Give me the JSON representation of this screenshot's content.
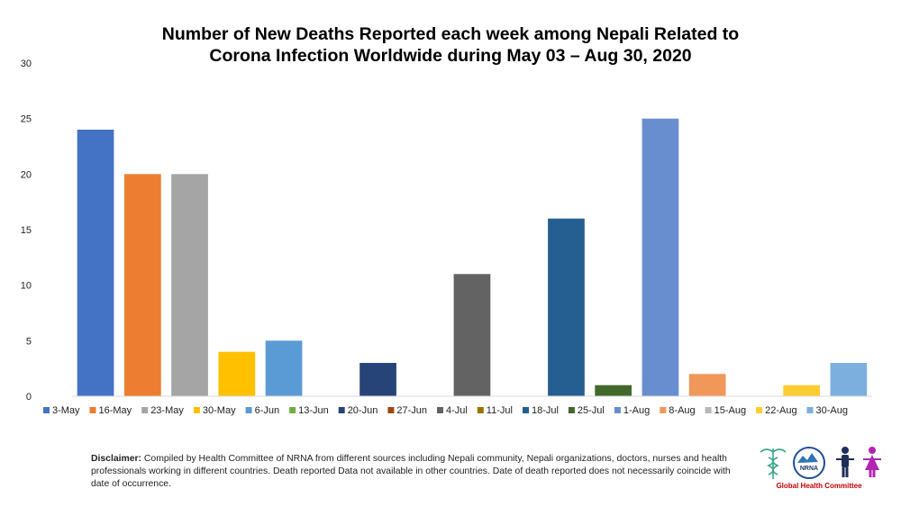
{
  "title_line1": "Number of New Deaths Reported each week among Nepali Related to",
  "title_line2": "Corona Infection Worldwide during May 03 – Aug 30, 2020",
  "chart_data": {
    "type": "bar",
    "categories": [
      "3-May",
      "16-May",
      "23-May",
      "30-May",
      "6-Jun",
      "13-Jun",
      "20-Jun",
      "27-Jun",
      "4-Jul",
      "11-Jul",
      "18-Jul",
      "25-Jul",
      "1-Aug",
      "8-Aug",
      "15-Aug",
      "22-Aug",
      "30-Aug"
    ],
    "values": [
      24,
      20,
      20,
      4,
      5,
      0,
      3,
      0,
      11,
      0,
      16,
      1,
      25,
      2,
      0,
      1,
      3
    ],
    "colors": [
      "#4472c4",
      "#ed7d31",
      "#a5a5a5",
      "#ffc000",
      "#5b9bd5",
      "#70ad47",
      "#264478",
      "#9e480e",
      "#636363",
      "#997300",
      "#255e91",
      "#43682b",
      "#698ed0",
      "#f1975a",
      "#b7b7b7",
      "#ffcd33",
      "#7cafdd"
    ],
    "ylim": [
      0,
      30
    ],
    "yticks": [
      "0",
      "5",
      "10",
      "15",
      "20",
      "25",
      "30"
    ],
    "grid": false,
    "legend": "bottom"
  },
  "disclaimer": {
    "label": "Disclaimer:",
    "text": " Compiled by Health Committee of NRNA from different sources including Nepali community, Nepali organizations, doctors, nurses and health professionals working in different countries. Death reported Data not available in other countries. Date of death reported does not necessarily coincide with date of occurrence."
  },
  "logo": {
    "nrna_text": "NRNA",
    "org_name": "Global Health Committee",
    "icons": [
      "caduceus-icon",
      "nrna-logo",
      "man-icon",
      "woman-icon"
    ]
  }
}
